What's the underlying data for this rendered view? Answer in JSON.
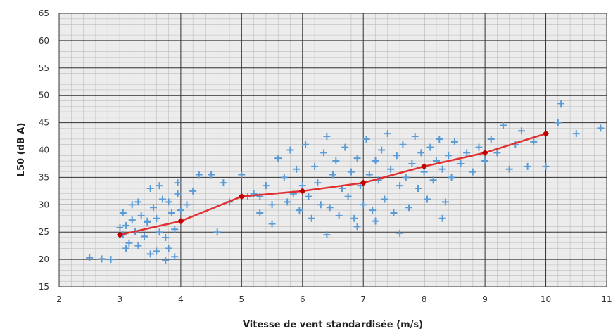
{
  "chart_data": {
    "type": "scatter",
    "title": "",
    "xlabel": "Vitesse de vent standardisée (m/s)",
    "ylabel": "L50 (dB A)",
    "xlim": [
      2,
      11
    ],
    "ylim": [
      15,
      65
    ],
    "xticks": [
      "2",
      "3",
      "4",
      "5",
      "6",
      "7",
      "8",
      "9",
      "10",
      "11"
    ],
    "yticks": [
      "15",
      "20",
      "25",
      "30",
      "35",
      "40",
      "45",
      "50",
      "55",
      "60",
      "65"
    ],
    "grid": true,
    "legend": "none",
    "colors": {
      "points": "#5b9bd5",
      "trend": "#e03030",
      "trend_marker": "#c00000",
      "plot_bg": "#ececec",
      "grid_major": "#333333",
      "grid_minor": "#bdbdbd"
    },
    "series": [
      {
        "kind": "scatter",
        "marker": "plus",
        "points": [
          [
            2.5,
            20.3
          ],
          [
            2.7,
            20.1
          ],
          [
            2.85,
            20.0
          ],
          [
            3.0,
            25.8
          ],
          [
            3.05,
            24.5
          ],
          [
            3.1,
            26.2
          ],
          [
            3.15,
            23.0
          ],
          [
            3.2,
            27.2
          ],
          [
            3.25,
            25.1
          ],
          [
            3.3,
            22.5
          ],
          [
            3.35,
            28.0
          ],
          [
            3.4,
            24.2
          ],
          [
            3.45,
            26.8
          ],
          [
            3.5,
            21.0
          ],
          [
            3.55,
            29.5
          ],
          [
            3.6,
            27.5
          ],
          [
            3.65,
            25.0
          ],
          [
            3.7,
            31.0
          ],
          [
            3.75,
            24.0
          ],
          [
            3.8,
            22.0
          ],
          [
            3.85,
            28.5
          ],
          [
            3.9,
            20.5
          ],
          [
            3.95,
            32.0
          ],
          [
            4.0,
            29.0
          ],
          [
            3.05,
            28.5
          ],
          [
            3.2,
            30.0
          ],
          [
            3.5,
            33.0
          ],
          [
            3.65,
            33.5
          ],
          [
            3.8,
            30.5
          ],
          [
            3.9,
            25.5
          ],
          [
            3.95,
            34.0
          ],
          [
            3.75,
            19.8
          ],
          [
            3.6,
            21.5
          ],
          [
            3.45,
            27.0
          ],
          [
            3.3,
            30.5
          ],
          [
            3.1,
            22.0
          ],
          [
            4.1,
            30.0
          ],
          [
            4.2,
            32.5
          ],
          [
            4.3,
            35.5
          ],
          [
            4.5,
            35.5
          ],
          [
            4.6,
            25.0
          ],
          [
            4.7,
            34.0
          ],
          [
            4.8,
            30.5
          ],
          [
            5.0,
            35.5
          ],
          [
            5.1,
            31.5
          ],
          [
            5.2,
            32.0
          ],
          [
            5.3,
            28.5
          ],
          [
            5.4,
            33.5
          ],
          [
            5.5,
            30.0
          ],
          [
            5.6,
            38.5
          ],
          [
            5.7,
            35.0
          ],
          [
            5.75,
            30.5
          ],
          [
            5.8,
            40.0
          ],
          [
            5.85,
            32.0
          ],
          [
            5.9,
            36.5
          ],
          [
            5.95,
            29.0
          ],
          [
            6.0,
            33.5
          ],
          [
            6.05,
            41.0
          ],
          [
            6.1,
            31.5
          ],
          [
            6.15,
            27.5
          ],
          [
            6.2,
            37.0
          ],
          [
            6.25,
            34.0
          ],
          [
            6.3,
            30.0
          ],
          [
            6.35,
            39.5
          ],
          [
            6.4,
            42.5
          ],
          [
            6.45,
            29.5
          ],
          [
            6.5,
            35.5
          ],
          [
            6.55,
            38.0
          ],
          [
            6.6,
            28.0
          ],
          [
            6.65,
            33.0
          ],
          [
            6.7,
            40.5
          ],
          [
            6.75,
            31.5
          ],
          [
            6.8,
            36.0
          ],
          [
            6.85,
            27.5
          ],
          [
            6.9,
            38.5
          ],
          [
            6.95,
            33.5
          ],
          [
            7.0,
            30.0
          ],
          [
            7.05,
            42.0
          ],
          [
            7.1,
            35.5
          ],
          [
            7.15,
            29.0
          ],
          [
            7.2,
            38.0
          ],
          [
            7.25,
            34.5
          ],
          [
            7.3,
            40.0
          ],
          [
            7.35,
            31.0
          ],
          [
            7.4,
            43.0
          ],
          [
            7.45,
            36.5
          ],
          [
            7.5,
            28.5
          ],
          [
            7.55,
            39.0
          ],
          [
            7.6,
            33.5
          ],
          [
            7.65,
            41.0
          ],
          [
            7.7,
            35.0
          ],
          [
            7.75,
            29.5
          ],
          [
            7.8,
            37.5
          ],
          [
            7.85,
            42.5
          ],
          [
            7.9,
            33.0
          ],
          [
            7.95,
            39.5
          ],
          [
            8.0,
            36.0
          ],
          [
            8.05,
            31.0
          ],
          [
            8.1,
            40.5
          ],
          [
            8.15,
            34.5
          ],
          [
            8.2,
            38.0
          ],
          [
            8.25,
            42.0
          ],
          [
            8.3,
            36.5
          ],
          [
            8.35,
            30.5
          ],
          [
            8.4,
            39.0
          ],
          [
            8.45,
            35.0
          ],
          [
            8.5,
            41.5
          ],
          [
            8.6,
            37.5
          ],
          [
            8.7,
            39.5
          ],
          [
            8.8,
            36.0
          ],
          [
            8.9,
            40.5
          ],
          [
            9.0,
            38.0
          ],
          [
            9.1,
            42.0
          ],
          [
            9.2,
            39.5
          ],
          [
            9.3,
            44.5
          ],
          [
            9.4,
            36.5
          ],
          [
            9.5,
            41.0
          ],
          [
            9.6,
            43.5
          ],
          [
            9.7,
            37.0
          ],
          [
            9.8,
            41.5
          ],
          [
            10.0,
            37.0
          ],
          [
            10.2,
            45.0
          ],
          [
            10.25,
            48.5
          ],
          [
            10.5,
            43.0
          ],
          [
            10.9,
            44.0
          ],
          [
            6.4,
            24.5
          ],
          [
            5.5,
            26.5
          ],
          [
            5.3,
            31.5
          ],
          [
            7.6,
            24.8
          ],
          [
            7.2,
            27.0
          ],
          [
            6.9,
            26.0
          ],
          [
            8.3,
            27.5
          ]
        ]
      },
      {
        "kind": "line",
        "marker": "diamond",
        "x": [
          3.0,
          4.0,
          5.0,
          6.0,
          7.0,
          8.0,
          9.0,
          10.0
        ],
        "y": [
          24.5,
          27.0,
          31.5,
          32.5,
          34.0,
          37.0,
          39.5,
          43.0
        ]
      }
    ]
  }
}
